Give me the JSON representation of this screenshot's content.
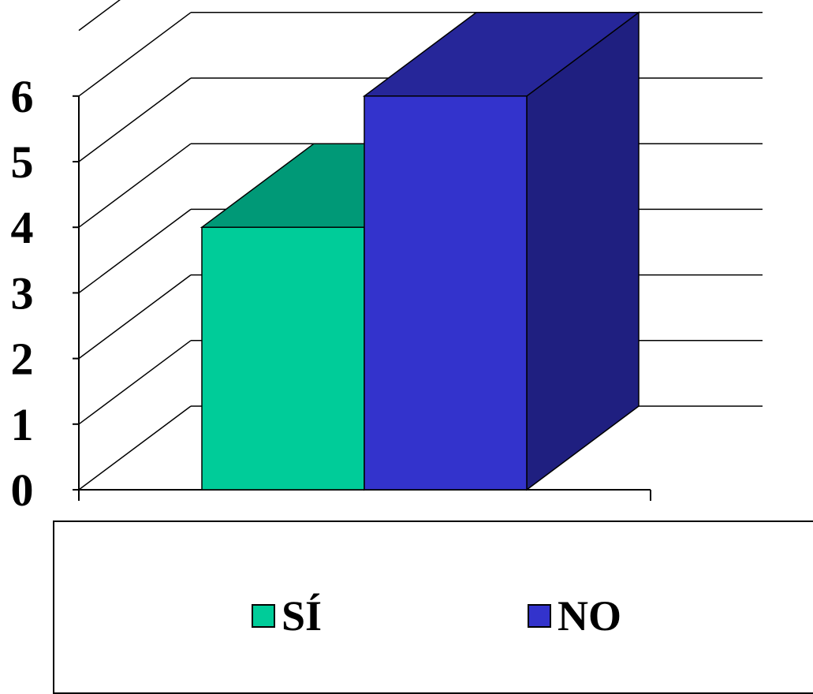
{
  "chart_data": {
    "type": "bar",
    "style": "3d-column",
    "categories": [
      ""
    ],
    "series": [
      {
        "name": "SÍ",
        "values": [
          4
        ],
        "color": "#00cc99",
        "top_color": "#009977",
        "side_color": "#007755"
      },
      {
        "name": "NO",
        "values": [
          6
        ],
        "color": "#3333cc",
        "top_color": "#262699",
        "side_color": "#1f1f80"
      }
    ],
    "yticks": [
      "0",
      "1",
      "2",
      "3",
      "4",
      "5",
      "6"
    ],
    "ylim": [
      0,
      7
    ],
    "grid": true,
    "legend_position": "bottom",
    "title": "",
    "xlabel": "",
    "ylabel": ""
  }
}
